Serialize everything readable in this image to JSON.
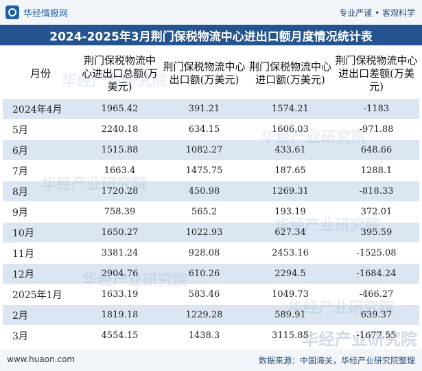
{
  "header": {
    "logo_text": "华经情报网",
    "slogan": "专业严谨 • 客观科学",
    "title": "2024-2025年3月荆门保税物流中心进出口额月度情况统计表"
  },
  "table": {
    "columns": [
      "月份",
      "荆门保税物流中心进出口总额(万美元)",
      "荆门保税物流中心出口额(万美元)",
      "荆门保税物流中心进口额(万美元)",
      "荆门保税物流中心进出口差额(万美元)"
    ],
    "rows": [
      [
        "2024年4月",
        "1965.42",
        "391.21",
        "1574.21",
        "-1183"
      ],
      [
        "5月",
        "2240.18",
        "634.15",
        "1606.03",
        "-971.88"
      ],
      [
        "6月",
        "1515.88",
        "1082.27",
        "433.61",
        "648.66"
      ],
      [
        "7月",
        "1663.4",
        "1475.75",
        "187.65",
        "1288.1"
      ],
      [
        "8月",
        "1720.28",
        "450.98",
        "1269.31",
        "-818.33"
      ],
      [
        "9月",
        "758.39",
        "565.2",
        "193.19",
        "372.01"
      ],
      [
        "10月",
        "1650.27",
        "1022.93",
        "627.34",
        "395.59"
      ],
      [
        "11月",
        "3381.24",
        "928.08",
        "2453.16",
        "-1525.08"
      ],
      [
        "12月",
        "2904.76",
        "610.26",
        "2294.5",
        "-1684.24"
      ],
      [
        "2025年1月",
        "1633.19",
        "583.46",
        "1049.73",
        "-466.27"
      ],
      [
        "2月",
        "1819.18",
        "1229.28",
        "589.91",
        "639.37"
      ],
      [
        "3月",
        "4554.15",
        "1438.3",
        "3115.85",
        "-1677.55"
      ]
    ]
  },
  "footer": {
    "site": "www.huaon.com",
    "source": "数据来源：中国海关，华经产业研究院整理"
  },
  "watermark": "华经产业研究院",
  "colors": {
    "title_bg": "#25538f",
    "row_alt_bg": "#dce6f2",
    "brand": "#1f5fa8"
  }
}
